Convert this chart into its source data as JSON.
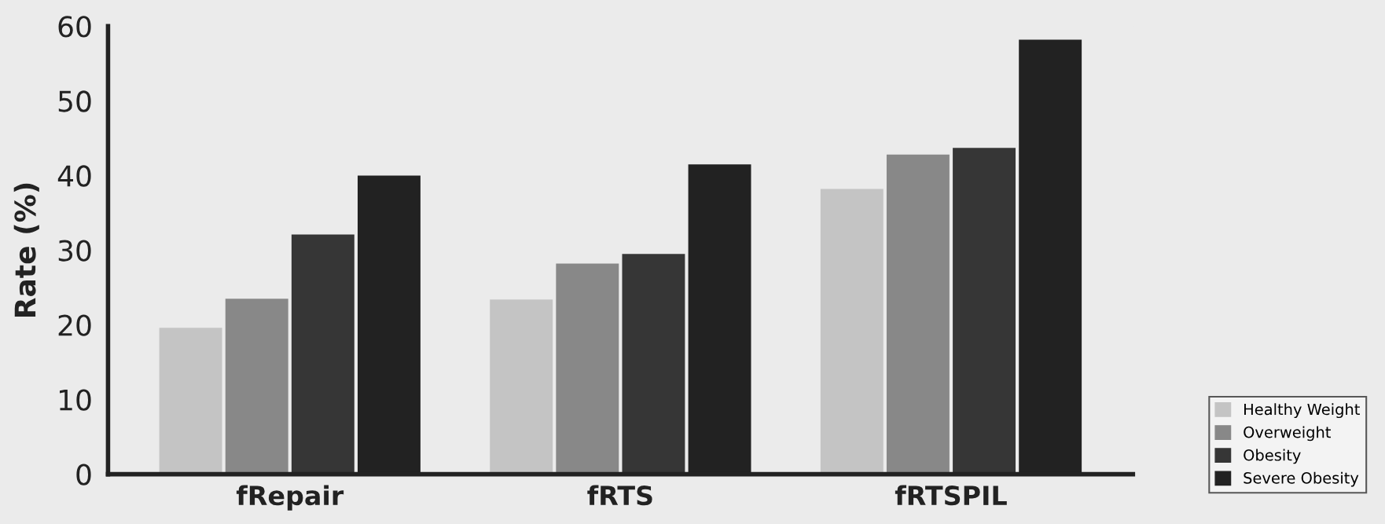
{
  "chart_data": {
    "type": "bar",
    "ylabel": "Rate (%)",
    "categories": [
      "fRepair",
      "fRTS",
      "fRTSPIL"
    ],
    "series": [
      {
        "name": "Healthy Weight",
        "color": "#c4c4c4",
        "values": [
          19.6,
          23.4,
          38.2
        ]
      },
      {
        "name": "Overweight",
        "color": "#888888",
        "values": [
          23.5,
          28.2,
          42.8
        ]
      },
      {
        "name": "Obesity",
        "color": "#363636",
        "values": [
          32.1,
          29.5,
          43.7
        ]
      },
      {
        "name": "Severe Obesity",
        "color": "#222222",
        "values": [
          40.0,
          41.5,
          58.2
        ]
      }
    ],
    "ylim": [
      0,
      60
    ],
    "yticks": [
      0,
      10,
      20,
      30,
      40,
      50,
      60
    ],
    "grid": false,
    "legend": "bottom right"
  }
}
